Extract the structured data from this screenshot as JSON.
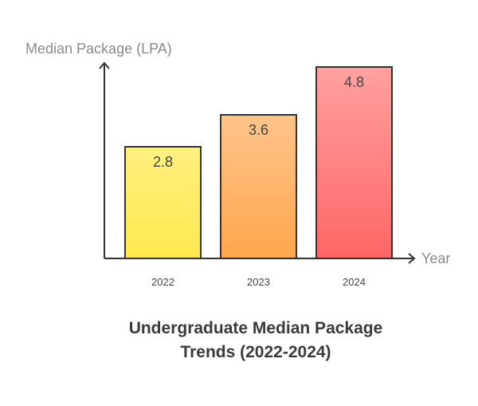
{
  "chart_data": {
    "type": "bar",
    "title_lines": [
      "Undergraduate Median Package",
      "Trends (2022-2024)"
    ],
    "xlabel": "Year",
    "ylabel": "Median Package (LPA)",
    "categories": [
      "2022",
      "2023",
      "2024"
    ],
    "values": [
      2.8,
      3.6,
      4.8
    ],
    "value_labels": [
      "2.8",
      "3.6",
      "4.8"
    ],
    "ylim": [
      0,
      4.8
    ],
    "grid": false,
    "legend": "none",
    "bar_colors": [
      {
        "top": "#fff080",
        "bottom": "#ffe84d"
      },
      {
        "top": "#ffc48a",
        "bottom": "#ffa64d"
      },
      {
        "top": "#ffa0a0",
        "bottom": "#ff6666"
      }
    ],
    "bar_stroke": "#333333",
    "axis_color": "#333333"
  }
}
